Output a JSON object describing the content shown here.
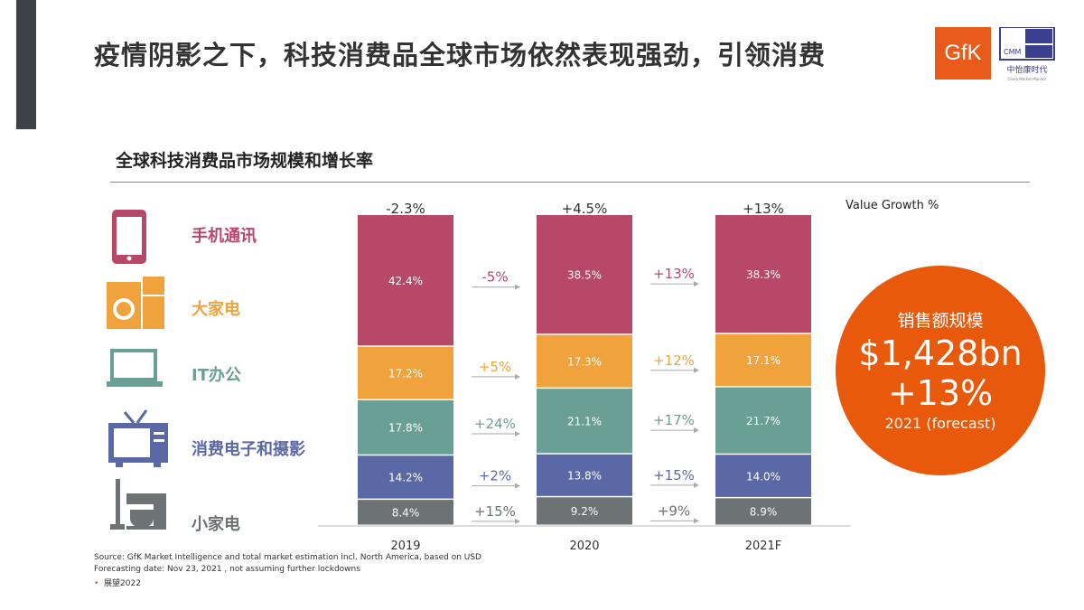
{
  "header": {
    "title": "疫情阴影之下，科技消费品全球市场依然表现强劲，引领消费",
    "logos": {
      "gfk": "GfK",
      "cmm": "CMM",
      "cmm_cn": "中怡康时代",
      "cmm_en": "China Market Monitor"
    }
  },
  "legend_header": "Value Growth %",
  "callout": {
    "label": "销售额规模",
    "value": "$1,428bn",
    "growth": "+13%",
    "note": "2021 (forecast)"
  },
  "footer": {
    "source": "Source: GfK Market Intelligence and total market estimation incl. North America, based on USD",
    "forecast": "Forecasting date: Nov 23, 2021 , not assuming further lockdowns",
    "bullet": "展望2022"
  },
  "chart_data": {
    "type": "bar",
    "stacked": true,
    "title": "全球科技消费品市场规模和增长率",
    "categories": [
      "2019",
      "2020",
      "2021F"
    ],
    "total_growth": [
      "-2.3%",
      "+4.5%",
      "+13%"
    ],
    "series": [
      {
        "name": "手机通讯",
        "icon": "smartphone-icon",
        "color": "#b84868",
        "values": [
          42.4,
          38.5,
          38.3
        ],
        "labels": [
          "42.4%",
          "38.5%",
          "38.3%"
        ],
        "growth": [
          "-5%",
          "+13%"
        ]
      },
      {
        "name": "大家电",
        "icon": "washer-fridge-icon",
        "color": "#f0a23c",
        "values": [
          17.2,
          17.3,
          17.1
        ],
        "labels": [
          "17.2%",
          "17.3%",
          "17.1%"
        ],
        "growth": [
          "+5%",
          "+12%"
        ]
      },
      {
        "name": "IT办公",
        "icon": "laptop-icon",
        "color": "#6a9f95",
        "values": [
          17.8,
          21.1,
          21.7
        ],
        "labels": [
          "17.8%",
          "21.1%",
          "21.7%"
        ],
        "growth": [
          "+24%",
          "+17%"
        ]
      },
      {
        "name": "消费电子和摄影",
        "icon": "tv-icon",
        "color": "#5b68a6",
        "values": [
          14.2,
          13.8,
          14.0
        ],
        "labels": [
          "14.2%",
          "13.8%",
          "14.0%"
        ],
        "growth": [
          "+2%",
          "+15%"
        ]
      },
      {
        "name": "小家电",
        "icon": "vacuum-mixer-icon",
        "color": "#6d7274",
        "values": [
          8.4,
          9.2,
          8.9
        ],
        "labels": [
          "8.4%",
          "9.2%",
          "8.9%"
        ],
        "growth": [
          "+15%",
          "+9%"
        ]
      }
    ]
  }
}
